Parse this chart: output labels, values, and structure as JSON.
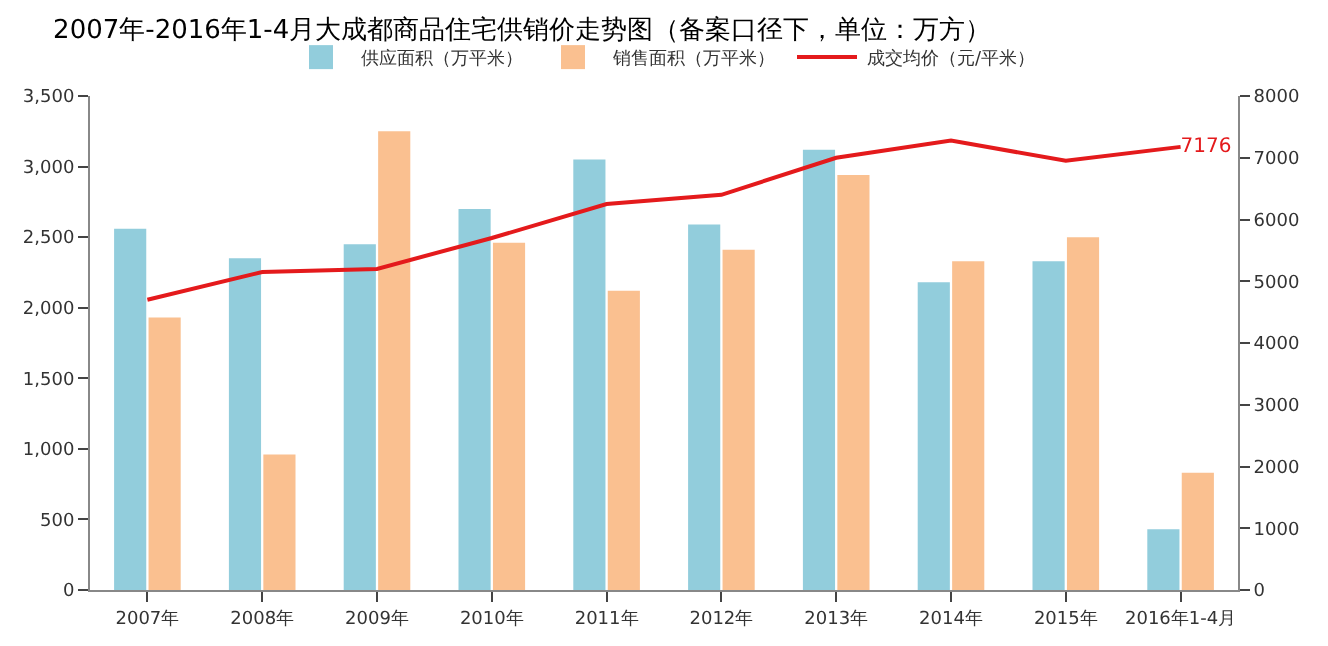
{
  "chart_data": {
    "type": "bar",
    "title": "2007年-2016年1-4月大成都商品住宅供销价走势图（备案口径下，单位：万方）",
    "categories": [
      "2007年",
      "2008年",
      "2009年",
      "2010年",
      "2011年",
      "2012年",
      "2013年",
      "2014年",
      "2015年",
      "2016年1-4月"
    ],
    "series": [
      {
        "name": "供应面积（万平米）",
        "color": "#92cddc",
        "values": [
          2560,
          2350,
          2450,
          2700,
          3050,
          2590,
          3120,
          2180,
          2330,
          430
        ]
      },
      {
        "name": "销售面积（万平米）",
        "color": "#fac090",
        "values": [
          1930,
          960,
          3250,
          2460,
          2120,
          2410,
          2940,
          2330,
          2500,
          830
        ]
      },
      {
        "name": "成交均价（元/平米）",
        "type": "line",
        "axis": "y2",
        "color": "#e41a1c",
        "values": [
          4700,
          5150,
          5200,
          5700,
          6250,
          6400,
          7000,
          7280,
          6950,
          7176
        ],
        "value_labels": [
          null,
          null,
          null,
          null,
          null,
          null,
          null,
          null,
          null,
          "7176"
        ]
      }
    ],
    "ylim": [
      0,
      3500
    ],
    "yticks": [
      {
        "value": 0,
        "label": "0"
      },
      {
        "value": 500,
        "label": "500"
      },
      {
        "value": 1000,
        "label": "1,000"
      },
      {
        "value": 1500,
        "label": "1,500"
      },
      {
        "value": 2000,
        "label": "2,000"
      },
      {
        "value": 2500,
        "label": "2,500"
      },
      {
        "value": 3000,
        "label": "3,000"
      },
      {
        "value": 3500,
        "label": "3,500"
      }
    ],
    "y2lim": [
      0,
      8000
    ],
    "y2ticks": [
      0,
      1000,
      2000,
      3000,
      4000,
      5000,
      6000,
      7000,
      8000
    ],
    "grid": false,
    "legend": "top",
    "marker": "none",
    "line_style": "solid"
  }
}
